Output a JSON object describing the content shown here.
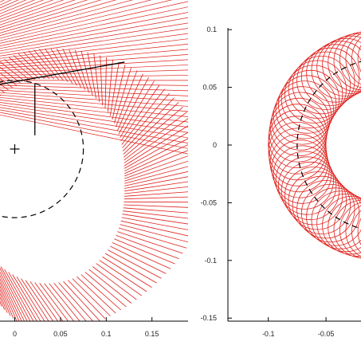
{
  "chart_data": [
    {
      "type": "line",
      "title": "",
      "xlabel": "",
      "ylabel": "",
      "xlim": [
        -0.01,
        0.19
      ],
      "ylim": [
        -0.16,
        0.1
      ],
      "x_ticks": [
        "0",
        "0.05",
        "0.1",
        "0.15"
      ],
      "x_tick_values": [
        0,
        0.05,
        0.1,
        0.15
      ],
      "grid": false,
      "legend": "none",
      "colors": {
        "lines": "#e0201b",
        "reference_circle": "#000000",
        "axes": "#000000"
      },
      "reference_circle": {
        "center": [
          0,
          0
        ],
        "radius": 0.075,
        "style": "dashed"
      },
      "center_marker": {
        "x": 0,
        "y": 0,
        "symbol": "+"
      },
      "pivot": {
        "x": 0.022,
        "y": 0.072
      },
      "highlighted_segment": {
        "from": [
          -0.02,
          0.07
        ],
        "to": [
          0.12,
          0.095
        ]
      },
      "vertical_segment": {
        "from": [
          0.022,
          0.072
        ],
        "to": [
          0.022,
          0.015
        ]
      },
      "line_count": 150
    },
    {
      "type": "line",
      "title": "",
      "xlabel": "",
      "ylabel": "",
      "xlim": [
        -0.12,
        0.0
      ],
      "ylim": [
        -0.15,
        0.1
      ],
      "x_ticks": [
        "-0.1",
        "-0.05"
      ],
      "x_tick_values": [
        -0.1,
        -0.05
      ],
      "y_ticks": [
        "0.1",
        "0.05",
        "0",
        "-0.05",
        "-0.1",
        "-0.15"
      ],
      "y_tick_values": [
        0.1,
        0.05,
        0,
        -0.05,
        -0.1,
        -0.15
      ],
      "grid": false,
      "legend": "none",
      "colors": {
        "lines": "#e0201b",
        "reference_circle": "#000000",
        "axes": "#000000"
      },
      "reference_circle": {
        "center": [
          0,
          0
        ],
        "radius": 0.075,
        "style": "dashed"
      },
      "small_circle_radius": 0.025,
      "circle_count": 90
    }
  ]
}
